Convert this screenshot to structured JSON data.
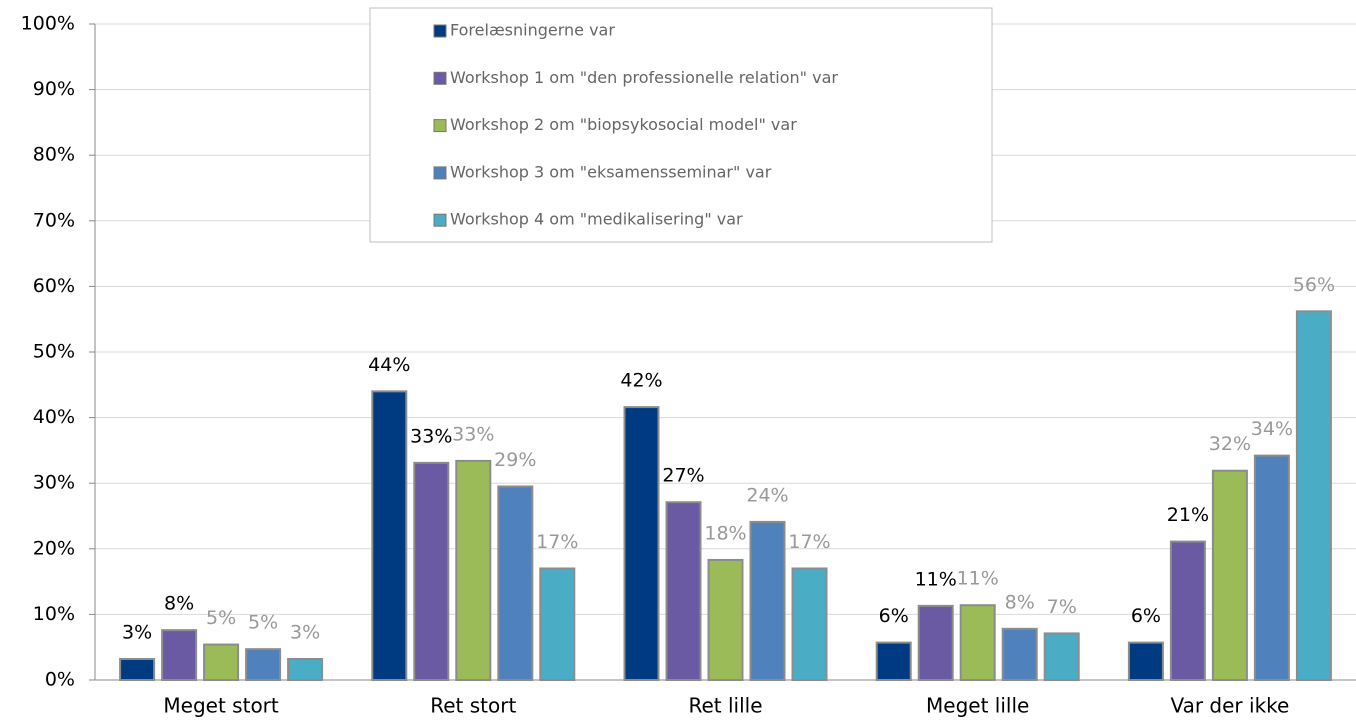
{
  "chart_data": {
    "type": "bar",
    "categories": [
      "Meget stort",
      "Ret stort",
      "Ret lille",
      "Meget lille",
      "Var der ikke"
    ],
    "series": [
      {
        "name": "Forelæsningerne var",
        "color": "#003a80",
        "label_color": "#000000",
        "values": [
          3.2,
          44,
          41.6,
          5.7,
          5.7
        ],
        "value_labels": [
          "3%",
          "44%",
          "42%",
          "6%",
          "6%"
        ]
      },
      {
        "name": "Workshop 1 om \"den professionelle relation\" var",
        "color": "#6a5aa3",
        "label_color": "#000000",
        "values": [
          7.6,
          33.1,
          27.1,
          11.3,
          21.1
        ],
        "value_labels": [
          "8%",
          "33%",
          "27%",
          "11%",
          "21%"
        ]
      },
      {
        "name": "Workshop 2 om \"biopsykosocial model\" var",
        "color": "#9bbb59",
        "label_color": "#999999",
        "values": [
          5.4,
          33.4,
          18.3,
          11.4,
          31.9
        ],
        "value_labels": [
          "5%",
          "33%",
          "18%",
          "11%",
          "32%"
        ]
      },
      {
        "name": "Workshop 3 om \"eksamensseminar\" var",
        "color": "#4f81bd",
        "label_color": "#999999",
        "values": [
          4.7,
          29.5,
          24.1,
          7.8,
          34.2
        ],
        "value_labels": [
          "5%",
          "29%",
          "24%",
          "8%",
          "34%"
        ]
      },
      {
        "name": "Workshop 4 om \"medikalisering\" var",
        "color": "#4bacc6",
        "label_color": "#999999",
        "values": [
          3.2,
          17,
          17,
          7.1,
          56.2
        ],
        "value_labels": [
          "3%",
          "17%",
          "17%",
          "7%",
          "56%"
        ]
      }
    ],
    "ylim": [
      0,
      100
    ],
    "yticks": [
      {
        "value": 0,
        "label": "0%"
      },
      {
        "value": 10,
        "label": "10%"
      },
      {
        "value": 20,
        "label": "20%"
      },
      {
        "value": 30,
        "label": "30%"
      },
      {
        "value": 40,
        "label": "40%"
      },
      {
        "value": 50,
        "label": "50%"
      },
      {
        "value": 60,
        "label": "60%"
      },
      {
        "value": 70,
        "label": "70%"
      },
      {
        "value": 80,
        "label": "80%"
      },
      {
        "value": 90,
        "label": "90%"
      },
      {
        "value": 100,
        "label": "100%"
      }
    ],
    "grid": true,
    "legend": "top"
  }
}
